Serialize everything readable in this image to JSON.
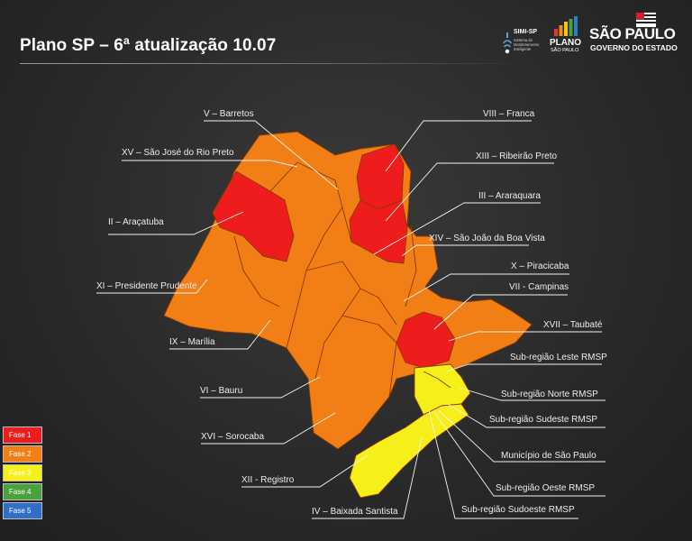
{
  "title": "Plano SP – 6ª atualização 10.07",
  "logos": {
    "simi": {
      "name": "SIMI-SP",
      "subtitle": "Sistema de Monitoramento Inteligente",
      "icon": "wifi-icon"
    },
    "plano": {
      "line1": "PLANO",
      "line2": "SÃO PAULO",
      "icon": "bar-chart-icon",
      "bar_colors": [
        "#e53a23",
        "#f28a1f",
        "#f2c418",
        "#4aa23f",
        "#2f7ec1"
      ]
    },
    "governo": {
      "line1": "SÃO PAULO",
      "line2": "GOVERNO DO ESTADO",
      "icon": "state-flag-icon"
    }
  },
  "colors": {
    "fase1": "#ee1c1c",
    "fase2": "#f27f16",
    "fase3": "#f7ef19",
    "fase4": "#4aa23f",
    "fase5": "#2f6fc9"
  },
  "regions": [
    {
      "label": "V – Barretos",
      "fase": 2
    },
    {
      "label": "VIII – Franca",
      "fase": 1
    },
    {
      "label": "XV – São José do Rio Preto",
      "fase": 2
    },
    {
      "label": "XIII – Ribeirão Preto",
      "fase": 1
    },
    {
      "label": "III – Araraquara",
      "fase": 1
    },
    {
      "label": "II – Araçatuba",
      "fase": 1
    },
    {
      "label": "XIV – São João da Boa Vista",
      "fase": 2
    },
    {
      "label": "X – Piracicaba",
      "fase": 2
    },
    {
      "label": "XI – Presidente Prudente",
      "fase": 2
    },
    {
      "label": "VII - Campinas",
      "fase": 2
    },
    {
      "label": "XVII – Taubaté",
      "fase": 1
    },
    {
      "label": "IX – Marília",
      "fase": 2
    },
    {
      "label": "Sub-região Leste RMSP",
      "fase": 3
    },
    {
      "label": "VI – Bauru",
      "fase": 2
    },
    {
      "label": "Sub-região Norte RMSP",
      "fase": 3
    },
    {
      "label": "Sub-região Sudeste RMSP",
      "fase": 3
    },
    {
      "label": "XVI – Sorocaba",
      "fase": 2
    },
    {
      "label": "Município de São Paulo",
      "fase": 3
    },
    {
      "label": "XII - Registro",
      "fase": 2
    },
    {
      "label": "Sub-região Oeste RMSP",
      "fase": 3
    },
    {
      "label": "IV – Baixada Santista",
      "fase": 3
    },
    {
      "label": "Sub-região Sudoeste RMSP",
      "fase": 3
    }
  ],
  "legend": [
    {
      "label": "Fase 1",
      "color": "#ee1c1c"
    },
    {
      "label": "Fase 2",
      "color": "#f27f16"
    },
    {
      "label": "Fase 3",
      "color": "#f7ef19"
    },
    {
      "label": "Fase 4",
      "color": "#4aa23f"
    },
    {
      "label": "Fase 5",
      "color": "#2f6fc9"
    }
  ]
}
